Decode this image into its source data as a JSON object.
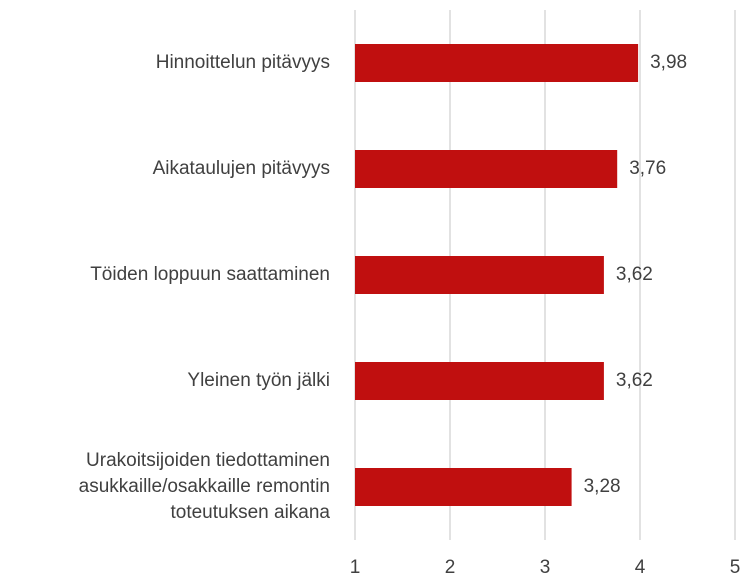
{
  "chart_data": {
    "type": "bar",
    "orientation": "horizontal",
    "categories": [
      "Hinnoittelun pitävyys",
      "Aikataulujen pitävyys",
      "Töiden loppuun saattaminen",
      "Yleinen työn jälki",
      "Urakoitsijoiden tiedottaminen asukkaille/osakkaille remontin toteutuksen aikana"
    ],
    "values": [
      3.98,
      3.76,
      3.62,
      3.62,
      3.28
    ],
    "value_labels": [
      "3,98",
      "3,76",
      "3,62",
      "3,62",
      "3,28"
    ],
    "color": "#c00f0f",
    "xlim": [
      1,
      5
    ],
    "xticks": [
      1,
      2,
      3,
      4,
      5
    ],
    "grid": true
  }
}
